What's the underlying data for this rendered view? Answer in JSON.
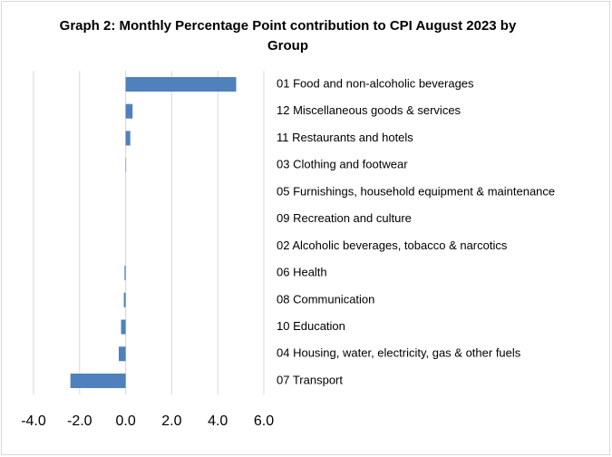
{
  "chart_data": {
    "type": "barh",
    "title": "Graph 2: Monthly Percentage Point contribution to CPI August 2023 by  Group",
    "categories": [
      "01 Food and non-alcoholic beverages",
      "12 Miscellaneous goods & services",
      "11 Restaurants and hotels",
      "03 Clothing and footwear",
      "05 Furnishings, household equipment & maintenance",
      "09 Recreation and culture",
      "02 Alcoholic beverages, tobacco & narcotics",
      "06 Health",
      "08 Communication",
      "10 Education",
      "04 Housing, water, electricity, gas & other fuels",
      "07 Transport"
    ],
    "values": [
      4.8,
      0.3,
      0.2,
      0.02,
      0,
      0,
      0,
      -0.05,
      -0.08,
      -0.2,
      -0.3,
      -2.4
    ],
    "color": "#4f81bd",
    "xlim": [
      -4,
      6
    ],
    "xticks": [
      {
        "value": -4,
        "label": "-4.0"
      },
      {
        "value": -2,
        "label": "-2.0"
      },
      {
        "value": 0,
        "label": "0.0"
      },
      {
        "value": 2,
        "label": "2.0"
      },
      {
        "value": 4,
        "label": "4.0"
      },
      {
        "value": 6,
        "label": "6.0"
      }
    ],
    "grid": true
  }
}
